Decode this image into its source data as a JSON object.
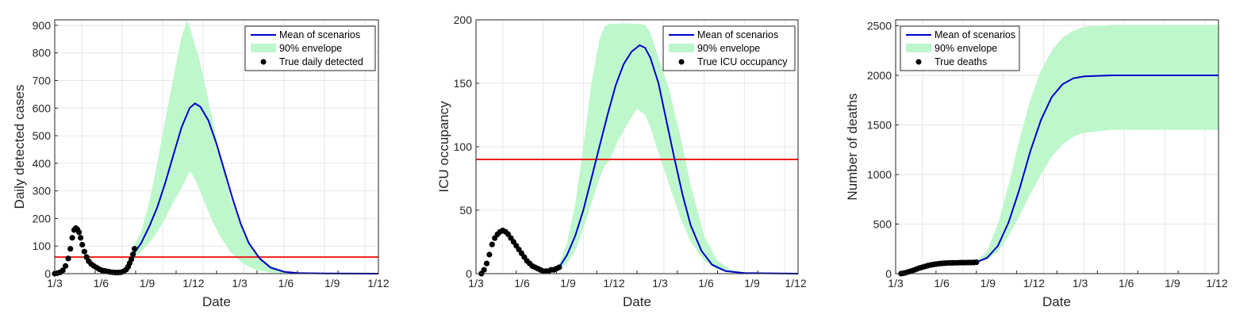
{
  "figure": {
    "ticks": [
      "1/3",
      "1/6",
      "1/9",
      "1/12",
      "1/3",
      "1/6",
      "1/9",
      "1/12"
    ]
  },
  "colors": {
    "mean": "#0000cc",
    "envelope": "#bff7cd",
    "observed": "#000000",
    "threshold": "#e8201a",
    "grid": "#e6e6e6",
    "axes": "#262626"
  },
  "chart_data": [
    {
      "type": "line",
      "xlabel": "Date",
      "ylabel": "Daily detected cases",
      "xlim": [
        0,
        12
      ],
      "ylim": [
        0,
        920
      ],
      "yticks": [
        0,
        100,
        200,
        300,
        400,
        500,
        600,
        700,
        800,
        900
      ],
      "grid": true,
      "legend_position": "top-right",
      "threshold": 60,
      "mean": {
        "name": "Mean of scenarios",
        "points": [
          [
            2.9,
            68
          ],
          [
            3.2,
            110
          ],
          [
            3.5,
            170
          ],
          [
            3.8,
            240
          ],
          [
            4.1,
            330
          ],
          [
            4.4,
            430
          ],
          [
            4.7,
            530
          ],
          [
            5.0,
            600
          ],
          [
            5.2,
            617
          ],
          [
            5.4,
            605
          ],
          [
            5.7,
            555
          ],
          [
            6.0,
            470
          ],
          [
            6.3,
            370
          ],
          [
            6.6,
            270
          ],
          [
            6.9,
            180
          ],
          [
            7.2,
            110
          ],
          [
            7.6,
            55
          ],
          [
            8.0,
            22
          ],
          [
            8.5,
            7
          ],
          [
            9.0,
            2
          ],
          [
            10,
            0.5
          ],
          [
            12,
            0
          ]
        ]
      },
      "envelope": {
        "name": "90% envelope",
        "x": [
          2.9,
          3.2,
          3.5,
          3.8,
          4.1,
          4.4,
          4.7,
          4.9,
          5.0,
          5.1,
          5.3,
          5.5,
          5.8,
          6.1,
          6.5,
          7.0,
          7.5,
          8.0,
          8.5,
          9.0,
          10,
          12
        ],
        "upper": [
          95,
          150,
          260,
          400,
          560,
          710,
          860,
          915,
          900,
          860,
          800,
          720,
          580,
          440,
          280,
          150,
          70,
          30,
          10,
          3,
          0,
          0
        ],
        "lower": [
          55,
          80,
          110,
          150,
          200,
          260,
          310,
          350,
          370,
          360,
          320,
          270,
          200,
          140,
          80,
          35,
          12,
          4,
          1,
          0,
          0,
          0
        ]
      },
      "observed": {
        "name": "True daily detected",
        "points": [
          [
            0,
            0
          ],
          [
            0.1,
            2
          ],
          [
            0.2,
            5
          ],
          [
            0.3,
            12
          ],
          [
            0.4,
            28
          ],
          [
            0.5,
            55
          ],
          [
            0.58,
            90
          ],
          [
            0.65,
            130
          ],
          [
            0.72,
            158
          ],
          [
            0.78,
            165
          ],
          [
            0.84,
            160
          ],
          [
            0.9,
            150
          ],
          [
            0.96,
            130
          ],
          [
            1.02,
            105
          ],
          [
            1.1,
            80
          ],
          [
            1.18,
            60
          ],
          [
            1.26,
            45
          ],
          [
            1.35,
            35
          ],
          [
            1.45,
            28
          ],
          [
            1.55,
            22
          ],
          [
            1.65,
            16
          ],
          [
            1.75,
            12
          ],
          [
            1.85,
            10
          ],
          [
            1.95,
            8
          ],
          [
            2.05,
            6
          ],
          [
            2.15,
            5
          ],
          [
            2.25,
            4
          ],
          [
            2.35,
            4
          ],
          [
            2.45,
            5
          ],
          [
            2.55,
            8
          ],
          [
            2.65,
            15
          ],
          [
            2.72,
            25
          ],
          [
            2.78,
            38
          ],
          [
            2.84,
            52
          ],
          [
            2.9,
            70
          ],
          [
            2.96,
            90
          ]
        ]
      }
    },
    {
      "type": "line",
      "xlabel": "Date",
      "ylabel": "ICU occupancy",
      "xlim": [
        0,
        12
      ],
      "ylim": [
        0,
        200
      ],
      "yticks": [
        0,
        50,
        100,
        150,
        200
      ],
      "grid": true,
      "legend_position": "top-right",
      "threshold": 90,
      "mean": {
        "name": "Mean of scenarios",
        "points": [
          [
            3.1,
            5
          ],
          [
            3.4,
            15
          ],
          [
            3.7,
            30
          ],
          [
            4.0,
            50
          ],
          [
            4.3,
            75
          ],
          [
            4.6,
            100
          ],
          [
            4.9,
            125
          ],
          [
            5.2,
            148
          ],
          [
            5.5,
            165
          ],
          [
            5.8,
            175
          ],
          [
            6.1,
            180
          ],
          [
            6.3,
            178
          ],
          [
            6.5,
            170
          ],
          [
            6.8,
            150
          ],
          [
            7.1,
            120
          ],
          [
            7.4,
            90
          ],
          [
            7.7,
            62
          ],
          [
            8.0,
            38
          ],
          [
            8.4,
            18
          ],
          [
            8.8,
            7
          ],
          [
            9.3,
            2
          ],
          [
            10,
            0.5
          ],
          [
            12,
            0
          ]
        ]
      },
      "envelope": {
        "name": "90% envelope",
        "x": [
          3.1,
          3.4,
          3.7,
          4.0,
          4.3,
          4.6,
          4.8,
          5.0,
          5.3,
          5.7,
          6.0,
          6.3,
          6.5,
          6.8,
          7.2,
          7.6,
          8.0,
          8.5,
          9.0,
          9.5,
          10,
          12
        ],
        "upper": [
          8,
          25,
          55,
          100,
          150,
          185,
          195,
          197,
          197,
          197,
          197,
          196,
          190,
          170,
          145,
          110,
          70,
          30,
          10,
          3,
          1,
          0
        ],
        "lower": [
          3,
          8,
          18,
          35,
          55,
          75,
          85,
          90,
          105,
          120,
          130,
          125,
          115,
          95,
          70,
          45,
          25,
          10,
          3,
          1,
          0,
          0
        ]
      },
      "observed": {
        "name": "True ICU occupancy",
        "points": [
          [
            0.2,
            0
          ],
          [
            0.3,
            3
          ],
          [
            0.4,
            8
          ],
          [
            0.5,
            15
          ],
          [
            0.6,
            23
          ],
          [
            0.7,
            28
          ],
          [
            0.8,
            31
          ],
          [
            0.9,
            33
          ],
          [
            1.0,
            34
          ],
          [
            1.1,
            33
          ],
          [
            1.2,
            31
          ],
          [
            1.3,
            28
          ],
          [
            1.4,
            25
          ],
          [
            1.5,
            22
          ],
          [
            1.6,
            19
          ],
          [
            1.7,
            16
          ],
          [
            1.8,
            13
          ],
          [
            1.9,
            10
          ],
          [
            2.0,
            8
          ],
          [
            2.1,
            6
          ],
          [
            2.2,
            5
          ],
          [
            2.3,
            4
          ],
          [
            2.4,
            3
          ],
          [
            2.5,
            2
          ],
          [
            2.6,
            2
          ],
          [
            2.7,
            2
          ],
          [
            2.8,
            3
          ],
          [
            2.9,
            3
          ],
          [
            3.0,
            4
          ],
          [
            3.1,
            5
          ]
        ]
      }
    },
    {
      "type": "line",
      "xlabel": "Date",
      "ylabel": "Number of deaths",
      "xlim": [
        0,
        12
      ],
      "ylim": [
        0,
        2560
      ],
      "yticks": [
        0,
        500,
        1000,
        1500,
        2000,
        2500
      ],
      "grid": true,
      "legend_position": "top-left",
      "mean": {
        "name": "Mean of scenarios",
        "points": [
          [
            3.0,
            115
          ],
          [
            3.4,
            160
          ],
          [
            3.8,
            280
          ],
          [
            4.2,
            520
          ],
          [
            4.6,
            850
          ],
          [
            5.0,
            1230
          ],
          [
            5.4,
            1550
          ],
          [
            5.8,
            1780
          ],
          [
            6.2,
            1910
          ],
          [
            6.6,
            1970
          ],
          [
            7.0,
            1990
          ],
          [
            8,
            2000
          ],
          [
            12,
            2000
          ]
        ]
      },
      "envelope": {
        "name": "90% envelope",
        "x": [
          3.0,
          3.4,
          3.8,
          4.2,
          4.6,
          5.0,
          5.4,
          5.8,
          6.2,
          6.6,
          7.0,
          8.0,
          9.0,
          12
        ],
        "upper": [
          120,
          230,
          500,
          900,
          1350,
          1750,
          2050,
          2250,
          2380,
          2450,
          2490,
          2510,
          2510,
          2510
        ],
        "lower": [
          110,
          140,
          220,
          380,
          580,
          800,
          1000,
          1180,
          1300,
          1380,
          1420,
          1450,
          1450,
          1450
        ]
      },
      "observed": {
        "name": "True deaths",
        "points": [
          [
            0.2,
            0
          ],
          [
            0.3,
            5
          ],
          [
            0.4,
            12
          ],
          [
            0.5,
            20
          ],
          [
            0.6,
            28
          ],
          [
            0.7,
            38
          ],
          [
            0.8,
            48
          ],
          [
            0.9,
            58
          ],
          [
            1.0,
            66
          ],
          [
            1.1,
            74
          ],
          [
            1.2,
            81
          ],
          [
            1.3,
            87
          ],
          [
            1.4,
            92
          ],
          [
            1.5,
            96
          ],
          [
            1.6,
            100
          ],
          [
            1.7,
            103
          ],
          [
            1.8,
            105
          ],
          [
            1.9,
            107
          ],
          [
            2.0,
            108
          ],
          [
            2.1,
            109
          ],
          [
            2.2,
            110
          ],
          [
            2.3,
            110
          ],
          [
            2.4,
            111
          ],
          [
            2.5,
            111
          ],
          [
            2.6,
            111
          ],
          [
            2.7,
            112
          ],
          [
            2.8,
            112
          ],
          [
            2.9,
            113
          ],
          [
            3.0,
            115
          ]
        ]
      }
    }
  ]
}
